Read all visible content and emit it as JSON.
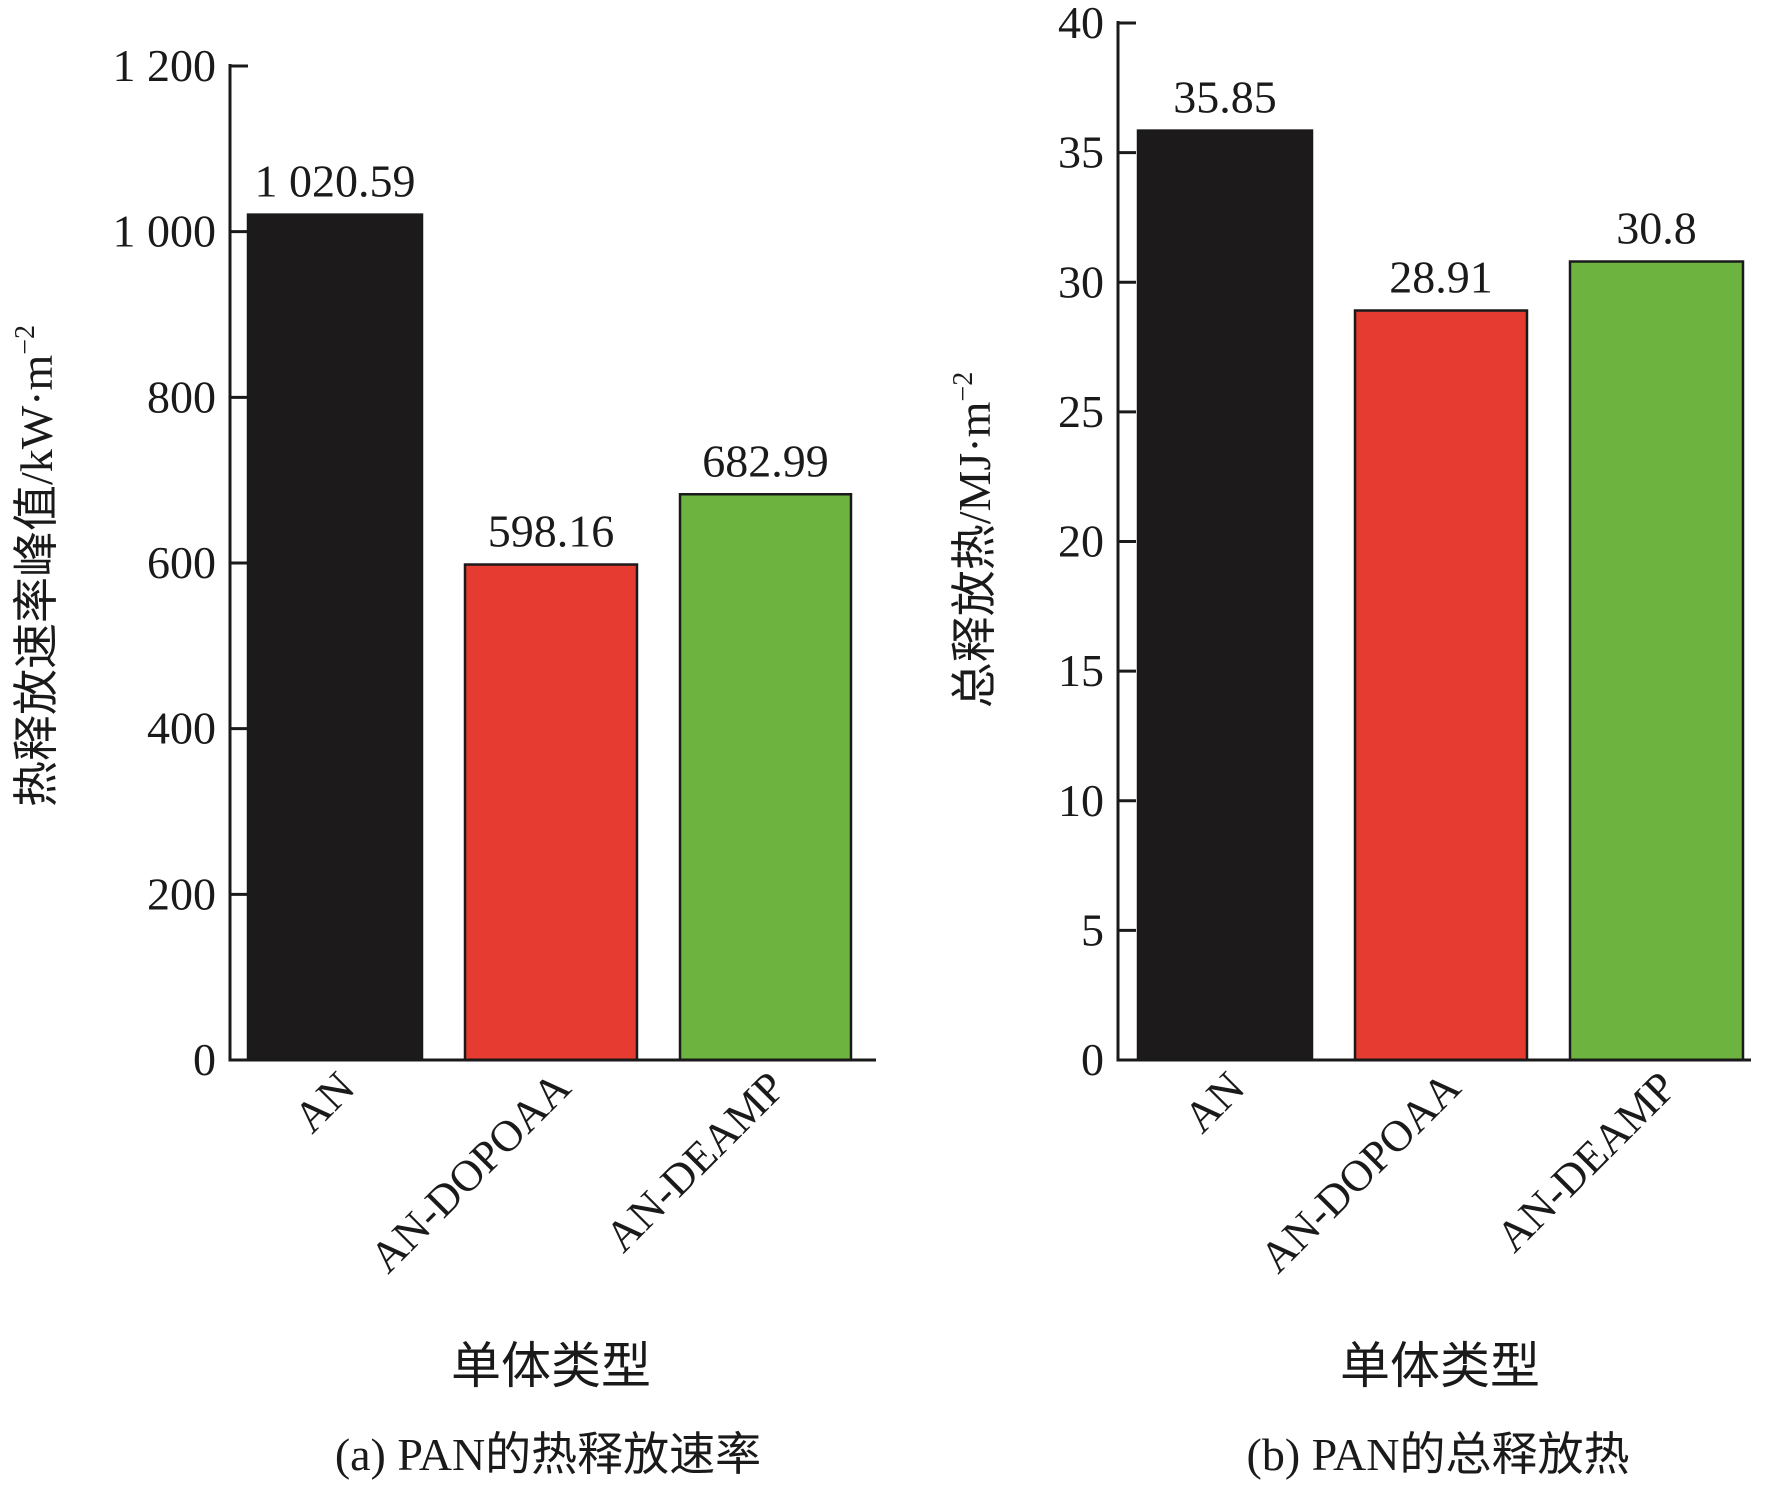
{
  "chart_data": [
    {
      "type": "bar",
      "title": "(a) PAN的热释放速率",
      "xlabel": "单体类型",
      "ylabel": "热释放速率峰值/kW·m",
      "ylabel_sup": "−2",
      "categories": [
        "AN",
        "AN-DOPOAA",
        "AN-DEAMP"
      ],
      "values": [
        1020.59,
        598.16,
        682.99
      ],
      "value_labels": [
        "1 020.59",
        "598.16",
        "682.99"
      ],
      "colors": [
        "#1c1a1b",
        "#e53b30",
        "#6db33f"
      ],
      "ylim": [
        0,
        1200
      ],
      "yticks": [
        0,
        200,
        400,
        600,
        800,
        1000,
        1200
      ],
      "ytick_labels": [
        "0",
        "200",
        "400",
        "600",
        "800",
        "1 000",
        "1 200"
      ],
      "grid": false,
      "legend": "none"
    },
    {
      "type": "bar",
      "title": "(b) PAN的总释放热",
      "xlabel": "单体类型",
      "ylabel": "总释放热/MJ·m",
      "ylabel_sup": "−2",
      "categories": [
        "AN",
        "AN-DOPOAA",
        "AN-DEAMP"
      ],
      "values": [
        35.85,
        28.91,
        30.8
      ],
      "value_labels": [
        "35.85",
        "28.91",
        "30.8"
      ],
      "colors": [
        "#1c1a1b",
        "#e53b30",
        "#6db33f"
      ],
      "ylim": [
        0,
        40
      ],
      "yticks": [
        0,
        5,
        10,
        15,
        20,
        25,
        30,
        35,
        40
      ],
      "ytick_labels": [
        "0",
        "5",
        "10",
        "15",
        "20",
        "25",
        "30",
        "35",
        "40"
      ],
      "grid": false,
      "legend": "none"
    }
  ]
}
